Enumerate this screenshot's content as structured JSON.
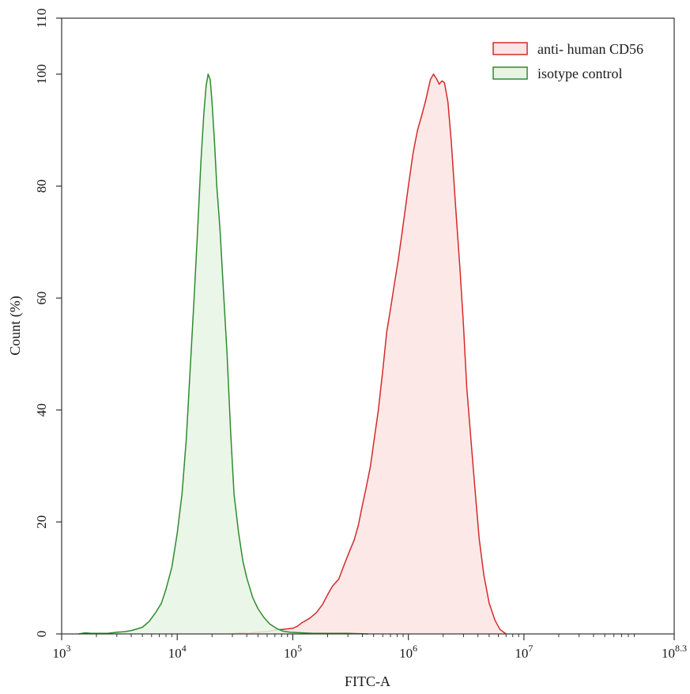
{
  "chart_data": {
    "type": "area",
    "xlabel": "FITC-A",
    "ylabel": "Count  (%)",
    "x_scale": "log",
    "xlim": [
      1000,
      199526231
    ],
    "ylim": [
      0,
      110
    ],
    "x_ticks": [
      {
        "value": 1000,
        "base": "10",
        "exp": "3"
      },
      {
        "value": 10000,
        "base": "10",
        "exp": "4"
      },
      {
        "value": 100000,
        "base": "10",
        "exp": "5"
      },
      {
        "value": 1000000,
        "base": "10",
        "exp": "6"
      },
      {
        "value": 10000000,
        "base": "10",
        "exp": "7"
      },
      {
        "value": 199526231,
        "base": "10",
        "exp": "8.3"
      }
    ],
    "y_ticks": [
      {
        "value": 0,
        "label": "0"
      },
      {
        "value": 20,
        "label": "20"
      },
      {
        "value": 40,
        "label": "40"
      },
      {
        "value": 60,
        "label": "60"
      },
      {
        "value": 80,
        "label": "80"
      },
      {
        "value": 100,
        "label": "100"
      },
      {
        "value": 110,
        "label": "110"
      }
    ],
    "grid": false,
    "legend_position": "top-right",
    "series": [
      {
        "name": "anti- human CD56",
        "stroke": "#d42a2a",
        "fill": "#fde4e4",
        "points": [
          [
            30000,
            0
          ],
          [
            35000,
            0.2
          ],
          [
            40000,
            0.1
          ],
          [
            50000,
            0.3
          ],
          [
            60000,
            0.4
          ],
          [
            70000,
            0.7
          ],
          [
            80000,
            0.8
          ],
          [
            100000,
            1.0
          ],
          [
            110000,
            1.4
          ],
          [
            120000,
            2.0
          ],
          [
            140000,
            2.8
          ],
          [
            160000,
            3.8
          ],
          [
            180000,
            5.2
          ],
          [
            200000,
            7.0
          ],
          [
            220000,
            8.5
          ],
          [
            250000,
            9.8
          ],
          [
            280000,
            12.5
          ],
          [
            310000,
            14.8
          ],
          [
            340000,
            16.8
          ],
          [
            370000,
            19.5
          ],
          [
            400000,
            23.0
          ],
          [
            430000,
            26.0
          ],
          [
            470000,
            30.0
          ],
          [
            500000,
            34.0
          ],
          [
            550000,
            40.0
          ],
          [
            600000,
            47.0
          ],
          [
            650000,
            54.0
          ],
          [
            700000,
            58.0
          ],
          [
            750000,
            62.0
          ],
          [
            820000,
            67.0
          ],
          [
            900000,
            73.0
          ],
          [
            1000000,
            80.0
          ],
          [
            1100000,
            86.0
          ],
          [
            1200000,
            90.0
          ],
          [
            1300000,
            92.5
          ],
          [
            1400000,
            95.0
          ],
          [
            1550000,
            99.0
          ],
          [
            1650000,
            100.0
          ],
          [
            1750000,
            99.2
          ],
          [
            1850000,
            98.2
          ],
          [
            1950000,
            98.8
          ],
          [
            2050000,
            98.5
          ],
          [
            2200000,
            95.0
          ],
          [
            2350000,
            88.0
          ],
          [
            2550000,
            77.0
          ],
          [
            2800000,
            65.0
          ],
          [
            3000000,
            55.0
          ],
          [
            3200000,
            44.0
          ],
          [
            3500000,
            34.0
          ],
          [
            3800000,
            25.0
          ],
          [
            4100000,
            17.0
          ],
          [
            4500000,
            10.5
          ],
          [
            5000000,
            5.5
          ],
          [
            5600000,
            2.5
          ],
          [
            6200000,
            0.8
          ],
          [
            7000000,
            0
          ]
        ]
      },
      {
        "name": "isotype control",
        "stroke": "#2e8b2e",
        "fill": "#e6f4e4",
        "points": [
          [
            1400,
            0
          ],
          [
            1600,
            0.2
          ],
          [
            1800,
            0.1
          ],
          [
            2500,
            0.1
          ],
          [
            3000,
            0.3
          ],
          [
            3500,
            0.4
          ],
          [
            4000,
            0.6
          ],
          [
            4500,
            0.9
          ],
          [
            5000,
            1.2
          ],
          [
            5700,
            2.2
          ],
          [
            6500,
            3.8
          ],
          [
            7300,
            5.5
          ],
          [
            8000,
            8.0
          ],
          [
            9000,
            12.0
          ],
          [
            10000,
            18.0
          ],
          [
            11000,
            25.0
          ],
          [
            12000,
            35.0
          ],
          [
            13000,
            48.0
          ],
          [
            14000,
            60.0
          ],
          [
            15000,
            72.0
          ],
          [
            16000,
            84.0
          ],
          [
            17000,
            93.0
          ],
          [
            17800,
            98.0
          ],
          [
            18500,
            100.0
          ],
          [
            19300,
            99.0
          ],
          [
            20000,
            95.0
          ],
          [
            21000,
            88.0
          ],
          [
            22000,
            80.0
          ],
          [
            23500,
            72.0
          ],
          [
            25000,
            62.0
          ],
          [
            27000,
            50.0
          ],
          [
            29000,
            36.0
          ],
          [
            31000,
            25.0
          ],
          [
            34000,
            18.0
          ],
          [
            37000,
            13.0
          ],
          [
            40000,
            10.0
          ],
          [
            45000,
            6.5
          ],
          [
            50000,
            4.5
          ],
          [
            56000,
            3.0
          ],
          [
            63000,
            1.8
          ],
          [
            72000,
            1.0
          ],
          [
            82000,
            0.5
          ],
          [
            95000,
            0.3
          ],
          [
            120000,
            0.2
          ],
          [
            150000,
            0.1
          ],
          [
            200000,
            0.1
          ],
          [
            300000,
            0.1
          ],
          [
            450000,
            0
          ]
        ]
      }
    ]
  }
}
